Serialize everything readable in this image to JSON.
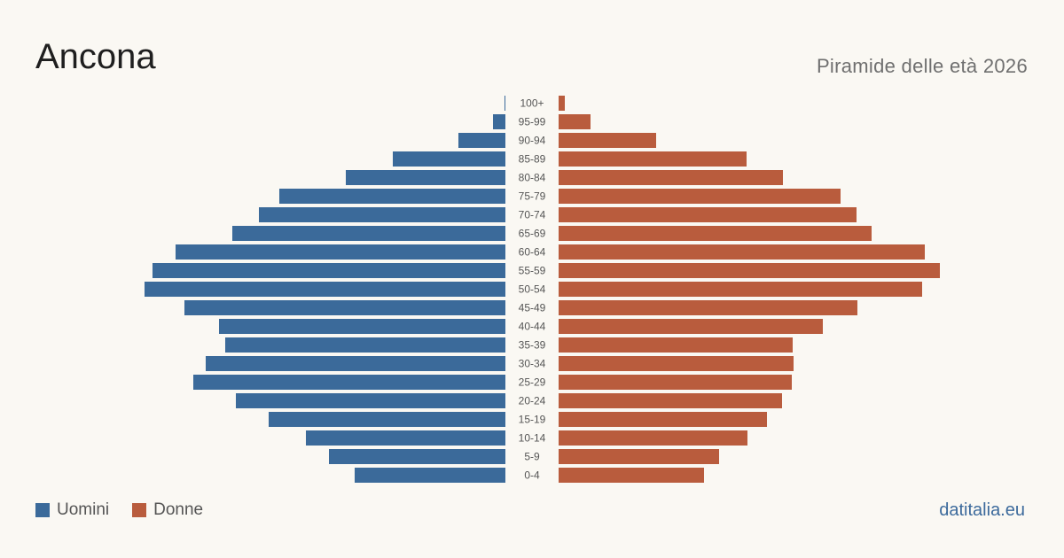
{
  "header": {
    "title": "Ancona",
    "subtitle": "Piramide delle età 2026"
  },
  "legend": {
    "men_label": "Uomini",
    "women_label": "Donne"
  },
  "footer": {
    "source": "datitalia.eu"
  },
  "colors": {
    "men": "#3b6a9a",
    "women": "#b95c3d",
    "background": "#faf8f3"
  },
  "chart_data": {
    "type": "bar",
    "orientation": "horizontal-pyramid",
    "categories": [
      "100+",
      "95-99",
      "90-94",
      "85-89",
      "80-84",
      "75-79",
      "70-74",
      "65-69",
      "60-64",
      "55-59",
      "50-54",
      "45-49",
      "40-44",
      "35-39",
      "30-34",
      "25-29",
      "20-24",
      "15-19",
      "10-14",
      "5-9",
      "0-4"
    ],
    "series": [
      {
        "name": "Uomini",
        "values": [
          1,
          14,
          53,
          127,
          180,
          255,
          278,
          308,
          372,
          398,
          407,
          362,
          323,
          316,
          338,
          352,
          304,
          267,
          225,
          199,
          170
        ]
      },
      {
        "name": "Donne",
        "values": [
          7,
          36,
          110,
          212,
          253,
          318,
          336,
          353,
          413,
          430,
          410,
          337,
          298,
          264,
          265,
          263,
          252,
          235,
          213,
          181,
          164
        ]
      }
    ],
    "xlabel": "",
    "ylabel": "",
    "grid": false,
    "legend_position": "bottom-left"
  }
}
